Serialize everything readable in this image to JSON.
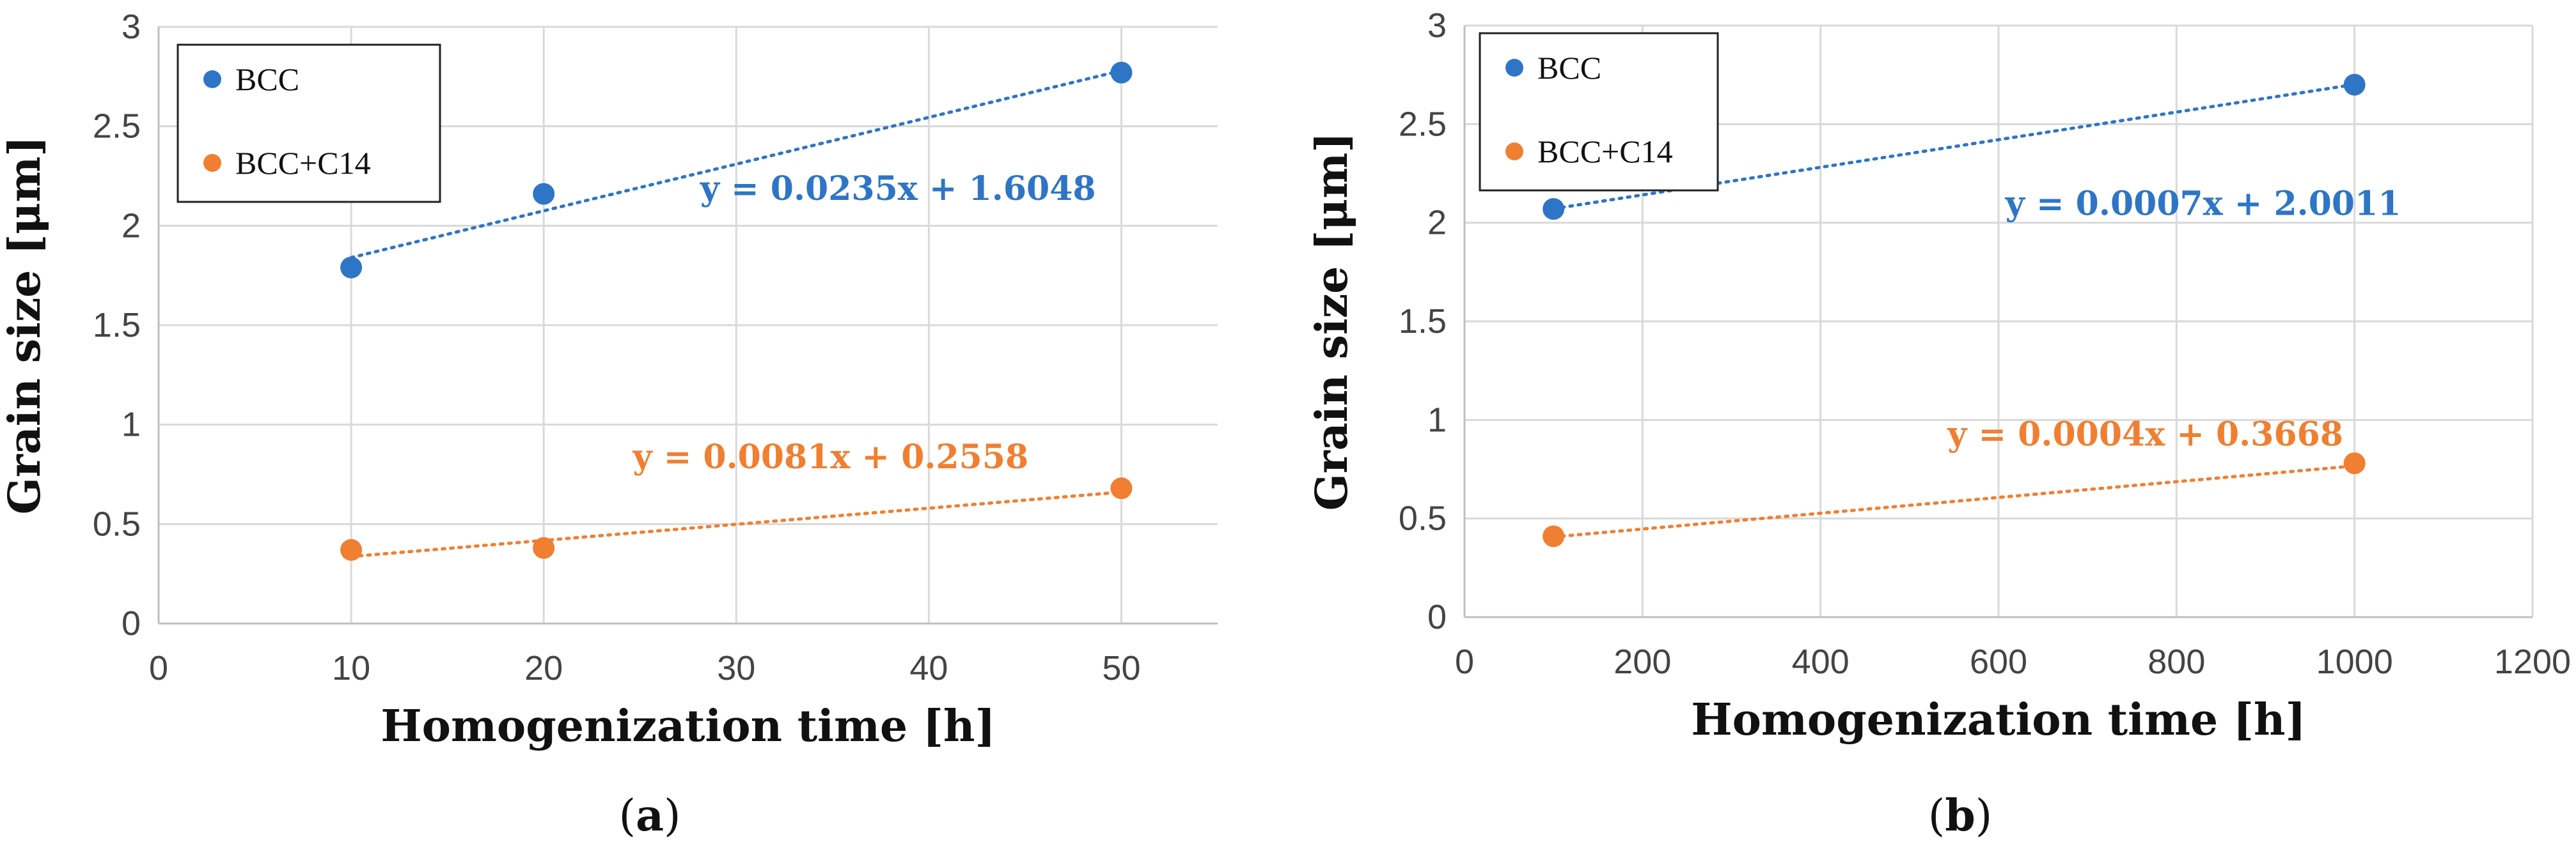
{
  "chart_data": [
    {
      "type": "scatter",
      "panel_label": {
        "open": "(",
        "letter": "a",
        "close": ")"
      },
      "xlabel": "Homogenization time [h]",
      "ylabel": "Grain size [μm]",
      "xlim": [
        0,
        55
      ],
      "ylim": [
        0,
        3
      ],
      "x_ticks": [
        0,
        10,
        20,
        30,
        40,
        50
      ],
      "y_ticks": [
        0,
        0.5,
        1,
        1.5,
        2,
        2.5,
        3
      ],
      "grid": true,
      "legend_position": "top-left",
      "series": [
        {
          "name": "BCC",
          "color": "#2E75C6",
          "x": [
            10,
            20,
            50
          ],
          "y": [
            1.79,
            2.16,
            2.77
          ],
          "trendline": {
            "slope": 0.0235,
            "intercept": 1.6048,
            "x_range": [
              10,
              50
            ],
            "equation": "y = 0.0235x + 1.6048",
            "label_x": 38.4,
            "label_y": 2.13
          }
        },
        {
          "name": "BCC+C14",
          "color": "#F07F31",
          "x": [
            10,
            20,
            50
          ],
          "y": [
            0.37,
            0.38,
            0.68
          ],
          "trendline": {
            "slope": 0.0081,
            "intercept": 0.2558,
            "x_range": [
              10,
              50
            ],
            "equation": "y = 0.0081x + 0.2558",
            "label_x": 34.9,
            "label_y": 0.78
          }
        }
      ]
    },
    {
      "type": "scatter",
      "panel_label": {
        "open": "(",
        "letter": "b",
        "close": ")"
      },
      "xlabel": "Homogenization time [h]",
      "ylabel": "Grain size [μm]",
      "xlim": [
        0,
        1200
      ],
      "ylim": [
        0,
        3
      ],
      "x_ticks": [
        0,
        200,
        400,
        600,
        800,
        1000,
        1200
      ],
      "y_ticks": [
        0,
        0.5,
        1,
        1.5,
        2,
        2.5,
        3
      ],
      "grid": true,
      "legend_position": "top-left",
      "series": [
        {
          "name": "BCC",
          "color": "#2E75C6",
          "x": [
            100,
            1000
          ],
          "y": [
            2.07,
            2.7
          ],
          "trendline": {
            "slope": 0.0007,
            "intercept": 2.0011,
            "x_range": [
              100,
              1000
            ],
            "equation": "y = 0.0007x + 2.0011",
            "label_x": 830,
            "label_y": 2.04
          }
        },
        {
          "name": "BCC+C14",
          "color": "#F07F31",
          "x": [
            100,
            1000
          ],
          "y": [
            0.41,
            0.78
          ],
          "trendline": {
            "slope": 0.0004,
            "intercept": 0.3668,
            "x_range": [
              100,
              1000
            ],
            "equation": "y = 0.0004x + 0.3668",
            "label_x": 765,
            "label_y": 0.87
          }
        }
      ]
    }
  ]
}
